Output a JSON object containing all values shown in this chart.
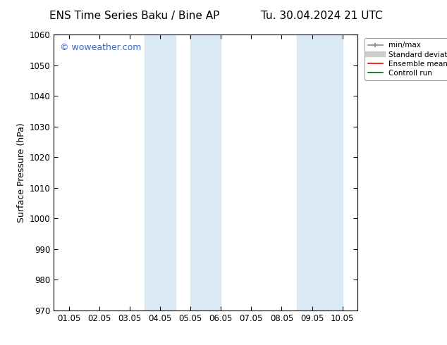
{
  "title_left": "ENS Time Series Baku / Bine AP",
  "title_right": "Tu. 30.04.2024 21 UTC",
  "ylabel": "Surface Pressure (hPa)",
  "ylim": [
    970,
    1060
  ],
  "yticks": [
    970,
    980,
    990,
    1000,
    1010,
    1020,
    1030,
    1040,
    1050,
    1060
  ],
  "xtick_labels": [
    "01.05",
    "02.05",
    "03.05",
    "04.05",
    "05.05",
    "06.05",
    "07.05",
    "08.05",
    "09.05",
    "10.05"
  ],
  "xtick_positions": [
    0.5,
    1.5,
    2.5,
    3.5,
    4.5,
    5.5,
    6.5,
    7.5,
    8.5,
    9.5
  ],
  "xlim": [
    0,
    10
  ],
  "shaded_bands": [
    {
      "x_start": 3.0,
      "x_end": 4.0
    },
    {
      "x_start": 4.5,
      "x_end": 5.5
    },
    {
      "x_start": 8.0,
      "x_end": 9.0
    },
    {
      "x_start": 9.0,
      "x_end": 9.5
    }
  ],
  "shade_color": "#daeaf5",
  "background_color": "#ffffff",
  "watermark_text": "© woweather.com",
  "watermark_color": "#3366cc",
  "spine_color": "#000000",
  "tick_color": "#000000",
  "title_fontsize": 11,
  "tick_fontsize": 8.5,
  "ylabel_fontsize": 9
}
